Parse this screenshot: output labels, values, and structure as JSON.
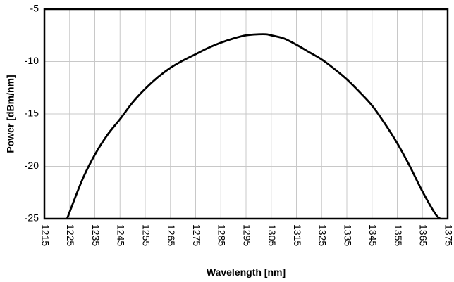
{
  "chart_data": {
    "type": "line",
    "title": "",
    "xlabel": "Wavelength [nm]",
    "ylabel": "Power [dBm/nm]",
    "xlim": [
      1215,
      1375
    ],
    "ylim": [
      -25,
      -5
    ],
    "x_ticks": [
      1215,
      1225,
      1235,
      1245,
      1255,
      1265,
      1275,
      1285,
      1295,
      1305,
      1315,
      1325,
      1335,
      1345,
      1355,
      1365,
      1375
    ],
    "y_ticks": [
      -5,
      -10,
      -15,
      -20,
      -25
    ],
    "grid": true,
    "legend": "none",
    "line_color": "#000000",
    "series": [
      {
        "x": [
          1224,
          1230,
          1235,
          1240,
          1245,
          1250,
          1255,
          1260,
          1265,
          1270,
          1275,
          1280,
          1285,
          1290,
          1295,
          1300,
          1303,
          1305,
          1310,
          1315,
          1320,
          1325,
          1330,
          1335,
          1340,
          1345,
          1350,
          1355,
          1360,
          1365,
          1370,
          1372
        ],
        "y": [
          -25.0,
          -21.3,
          -18.9,
          -17.0,
          -15.5,
          -13.9,
          -12.6,
          -11.5,
          -10.6,
          -9.9,
          -9.3,
          -8.7,
          -8.2,
          -7.8,
          -7.5,
          -7.4,
          -7.4,
          -7.5,
          -7.8,
          -8.4,
          -9.1,
          -9.8,
          -10.7,
          -11.7,
          -12.9,
          -14.2,
          -15.9,
          -17.8,
          -20.0,
          -22.4,
          -24.5,
          -25.0
        ]
      }
    ]
  }
}
